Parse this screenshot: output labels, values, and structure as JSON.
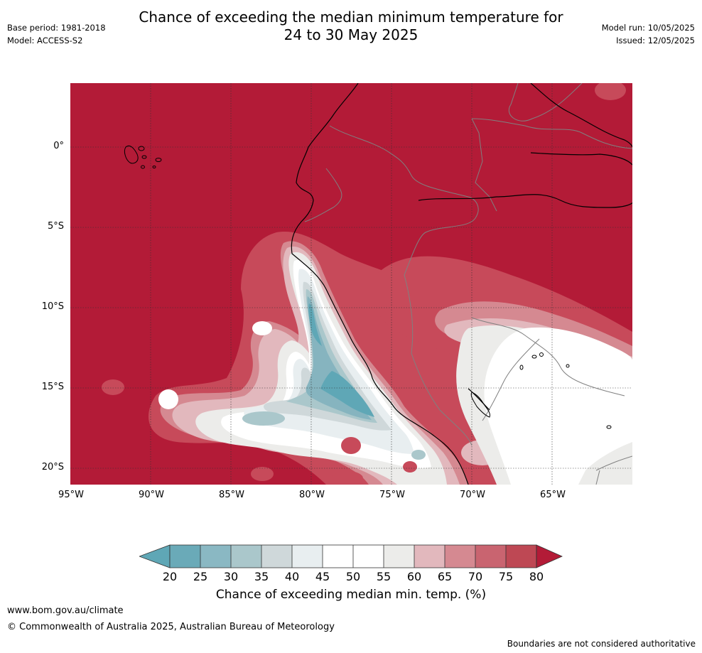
{
  "header": {
    "title_line1": "Chance of exceeding the median minimum temperature for",
    "title_line2": "24 to 30 May 2025",
    "base_period": "Base period: 1981-2018",
    "model": "Model: ACCESS-S2",
    "model_run": "Model run: 10/05/2025",
    "issued": "Issued: 12/05/2025"
  },
  "map": {
    "lat_labels": [
      "0°",
      "5°S",
      "10°S",
      "15°S",
      "20°S"
    ],
    "lon_labels": [
      "95°W",
      "90°W",
      "85°W",
      "80°W",
      "75°W",
      "70°W",
      "65°W"
    ],
    "colors": {
      "ge80": "#b31b37",
      "75_80": "#c74a5a",
      "70_75": "#d58991",
      "65_70": "#e2b8bd",
      "60_65": "#ececea",
      "45_60": "#ffffff",
      "40_45": "#e8eef0",
      "35_40": "#cfd8da",
      "30_35": "#a9c6cb",
      "25_30": "#86b4bf",
      "20_25": "#5fa7b6",
      "coast": "#000000",
      "border": "#808080"
    }
  },
  "colorbar": {
    "ticks": [
      "20",
      "25",
      "30",
      "35",
      "40",
      "45",
      "50",
      "55",
      "60",
      "65",
      "70",
      "75",
      "80"
    ],
    "title": "Chance of exceeding median min. temp. (%)",
    "colors": [
      "#5fa7b6",
      "#6aaab8",
      "#8ab8c3",
      "#aac7cb",
      "#cfd8da",
      "#e8eef0",
      "#ffffff",
      "#ffffff",
      "#ececea",
      "#e2b8bd",
      "#d58991",
      "#c96470",
      "#be4854",
      "#b31b37"
    ]
  },
  "footer": {
    "website": "www.bom.gov.au/climate",
    "copyright": "© Commonwealth of Australia 2025, Australian Bureau of Meteorology",
    "disclaimer": "Boundaries are not considered authoritative"
  }
}
